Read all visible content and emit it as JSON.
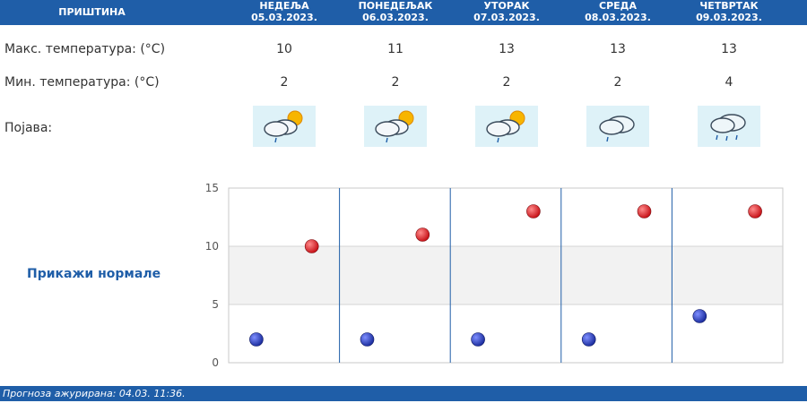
{
  "header": {
    "city": "ПРИШТИНА",
    "days": [
      {
        "name": "НЕДЕЉА",
        "date": "05.03.2023."
      },
      {
        "name": "ПОНЕДЕЉАК",
        "date": "06.03.2023."
      },
      {
        "name": "УТОРАК",
        "date": "07.03.2023."
      },
      {
        "name": "СРЕДА",
        "date": "08.03.2023."
      },
      {
        "name": "ЧЕТВРТАК",
        "date": "09.03.2023."
      }
    ]
  },
  "rows": {
    "max_label": "Макс. температура: (°C)",
    "min_label": "Мин. температура: (°C)",
    "phenomenon_label": "Појава:"
  },
  "max_temps": [
    "10",
    "11",
    "13",
    "13",
    "13"
  ],
  "min_temps": [
    "2",
    "2",
    "2",
    "2",
    "4"
  ],
  "icons": [
    "partly-cloudy-light-rain-icon",
    "partly-cloudy-light-rain-icon",
    "partly-cloudy-light-rain-icon",
    "cloud-light-rain-icon",
    "cloud-rain-icon"
  ],
  "normals_link": "Прикажи нормале",
  "footer": "Прогноза ажурирана:  04.03.  11:36.",
  "colors": {
    "header": "#1f5ea8",
    "max_point": "#c8141a",
    "min_point": "#1d2fa0",
    "band": "#f2f2f2"
  },
  "chart_data": {
    "type": "scatter",
    "categories": [
      "05.03.2023.",
      "06.03.2023.",
      "07.03.2023.",
      "08.03.2023.",
      "09.03.2023."
    ],
    "series": [
      {
        "values": [
          10,
          11,
          13,
          13,
          13
        ],
        "color": "#c8141a"
      },
      {
        "values": [
          2,
          2,
          2,
          2,
          4
        ],
        "color": "#1d2fa0"
      }
    ],
    "ylim": [
      0,
      15
    ],
    "yticks": [
      "0",
      "5",
      "10",
      "15"
    ],
    "band": [
      5,
      10
    ]
  }
}
